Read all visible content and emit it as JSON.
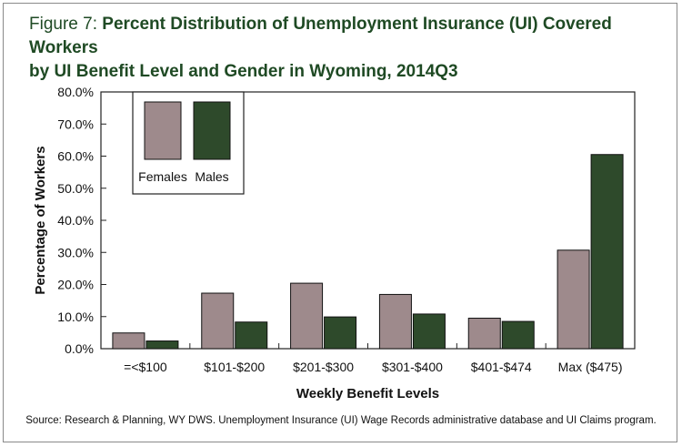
{
  "figure": {
    "label": "Figure 7:",
    "title_line1": "Percent Distribution of Unemployment Insurance (UI) Covered Workers",
    "title_line2": "by UI Benefit Level and Gender in Wyoming, 2014Q3",
    "source": "Source:  Research & Planning, WY DWS. Unemployment Insurance (UI) Wage Records administrative database and UI Claims program."
  },
  "chart_data": {
    "type": "bar",
    "xlabel": "Weekly Benefit Levels",
    "ylabel": "Percentage of Workers",
    "ylim": [
      0,
      80
    ],
    "yticks": [
      "0.0%",
      "10.0%",
      "20.0%",
      "30.0%",
      "40.0%",
      "50.0%",
      "60.0%",
      "70.0%",
      "80.0%"
    ],
    "categories": [
      "=<$100",
      "$101-$200",
      "$201-$300",
      "$301-$400",
      "$401-$474",
      "Max ($475)"
    ],
    "series": [
      {
        "name": "Females",
        "color": "#9e8a8c",
        "values": [
          4.9,
          17.3,
          20.4,
          16.9,
          9.5,
          30.7
        ]
      },
      {
        "name": "Males",
        "color": "#2e4a2b",
        "values": [
          2.4,
          8.3,
          9.9,
          10.8,
          8.5,
          60.5
        ]
      }
    ],
    "grid": false,
    "legend_position": "top-left"
  }
}
